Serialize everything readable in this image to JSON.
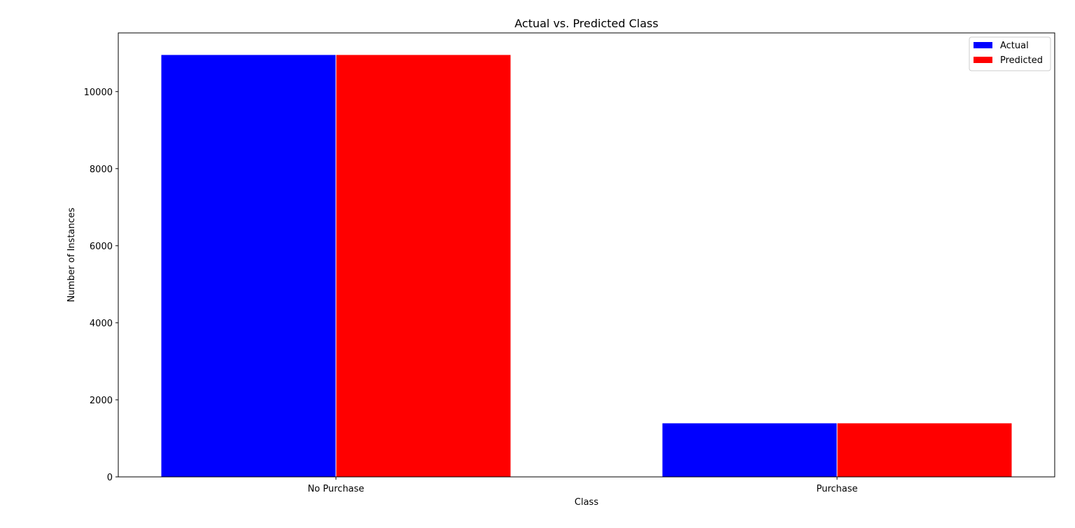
{
  "chart_data": {
    "type": "bar",
    "title": "Actual vs. Predicted Class",
    "xlabel": "Class",
    "ylabel": "Number of Instances",
    "categories": [
      "No Purchase",
      "Purchase"
    ],
    "series": [
      {
        "name": "Actual",
        "color": "#0000ff",
        "values": [
          10960,
          1400
        ]
      },
      {
        "name": "Predicted",
        "color": "#ff0000",
        "values": [
          10960,
          1400
        ]
      }
    ],
    "ylim": [
      0,
      11523
    ],
    "yticks": [
      0,
      2000,
      4000,
      6000,
      8000,
      10000
    ],
    "grid": false,
    "legend": "top-right",
    "bar_edge_color": "#ffffff"
  }
}
